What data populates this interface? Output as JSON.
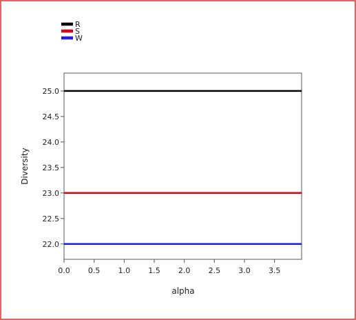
{
  "chart_data": {
    "type": "line",
    "title": "",
    "xlabel": "alpha",
    "ylabel": "Diversity",
    "xlim": [
      0.0,
      3.95
    ],
    "ylim": [
      21.7,
      25.35
    ],
    "x_ticks": [
      "0.0",
      "0.5",
      "1.0",
      "1.5",
      "2.0",
      "2.5",
      "3.0",
      "3.5"
    ],
    "y_ticks": [
      "25.0",
      "24.5",
      "24.0",
      "23.5",
      "23.0",
      "22.5",
      "22.0"
    ],
    "grid": false,
    "legend_position": "top-left",
    "series": [
      {
        "name": "R",
        "color": "#000000",
        "x": [
          0.0,
          3.95
        ],
        "values": [
          25.0,
          25.0
        ]
      },
      {
        "name": "S",
        "color": "#e0000f",
        "x": [
          0.0,
          3.95
        ],
        "values": [
          23.0,
          23.0
        ]
      },
      {
        "name": "W",
        "color": "#1a1aff",
        "x": [
          0.0,
          3.95
        ],
        "values": [
          22.0,
          22.0
        ]
      }
    ]
  },
  "frame_color": "#e03030"
}
